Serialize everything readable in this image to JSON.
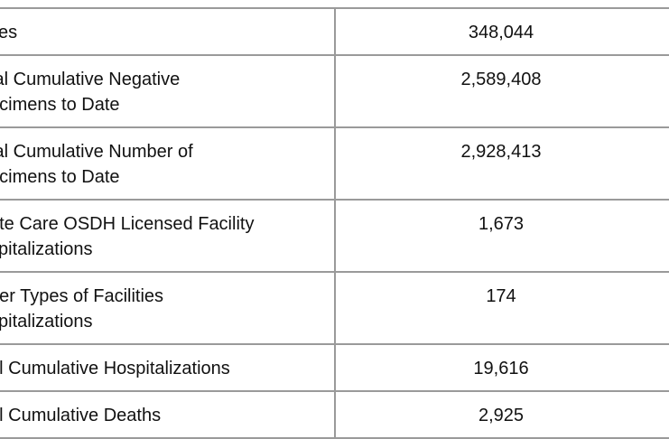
{
  "table": {
    "rows": [
      {
        "label": "ses",
        "value": "348,044"
      },
      {
        "label": "tal Cumulative Negative\necimens to Date",
        "value": "2,589,408"
      },
      {
        "label": "tal Cumulative Number of\necimens to Date",
        "value": "2,928,413"
      },
      {
        "label": "ute Care OSDH Licensed Facility\nspitalizations",
        "value": "1,673"
      },
      {
        "label": "her Types of Facilities\nspitalizations",
        "value": "174"
      },
      {
        "label": "al Cumulative Hospitalizations",
        "value": "19,616"
      },
      {
        "label": "al Cumulative Deaths",
        "value": "2,925"
      }
    ]
  }
}
